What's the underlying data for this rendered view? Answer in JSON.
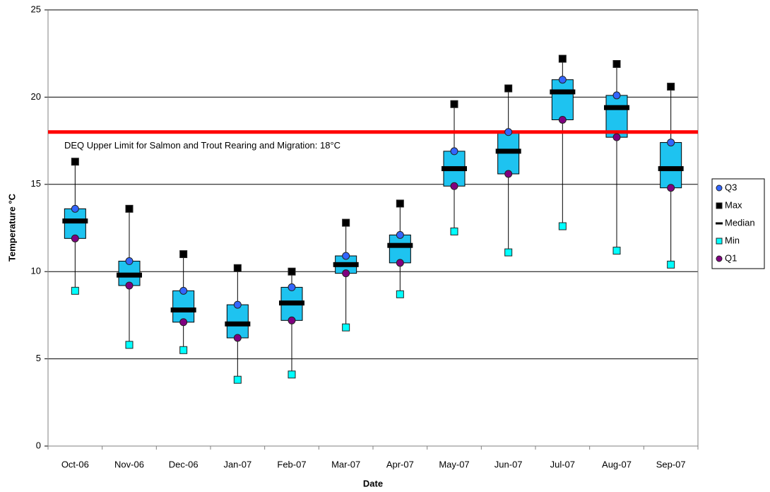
{
  "chart_data": {
    "type": "box",
    "x_label": "Date",
    "y_label": "Temperature °C",
    "categories": [
      "Oct-06",
      "Nov-06",
      "Dec-06",
      "Jan-07",
      "Feb-07",
      "Mar-07",
      "Apr-07",
      "May-07",
      "Jun-07",
      "Jul-07",
      "Aug-07",
      "Sep-07"
    ],
    "series": [
      {
        "name": "Q3",
        "color": "#3366ff",
        "marker": "circle",
        "role": "q3",
        "values": [
          13.6,
          10.6,
          8.9,
          8.1,
          9.1,
          10.9,
          12.1,
          16.9,
          18.0,
          21.0,
          20.1,
          17.4
        ]
      },
      {
        "name": "Max",
        "color": "#000000",
        "marker": "square",
        "role": "max",
        "values": [
          16.3,
          13.6,
          11.0,
          10.2,
          10.0,
          12.8,
          13.9,
          19.6,
          20.5,
          22.2,
          21.9,
          20.6
        ]
      },
      {
        "name": "Median",
        "color": "#000000",
        "marker": "dash",
        "role": "median",
        "values": [
          12.9,
          9.8,
          7.8,
          7.0,
          8.2,
          10.4,
          11.5,
          15.9,
          16.9,
          20.3,
          19.4,
          15.9
        ]
      },
      {
        "name": "Min",
        "color": "#00ffff",
        "marker": "square",
        "role": "min",
        "values": [
          8.9,
          5.8,
          5.5,
          3.8,
          4.1,
          6.8,
          8.7,
          12.3,
          11.1,
          12.6,
          11.2,
          10.4
        ]
      },
      {
        "name": "Q1",
        "color": "#800080",
        "marker": "circle",
        "role": "q1",
        "values": [
          11.9,
          9.2,
          7.1,
          6.2,
          7.2,
          9.9,
          10.5,
          14.9,
          15.6,
          18.7,
          17.7,
          14.8
        ]
      }
    ],
    "box_color": "#1ec3f0",
    "reference_line": {
      "value": 18,
      "label": "DEQ Upper Limit for Salmon and Trout Rearing and Migration: 18°C",
      "color": "#ff0000"
    },
    "ylim": [
      0,
      25
    ],
    "yticks": [
      0,
      5,
      10,
      15,
      20,
      25
    ],
    "grid": true,
    "legend": "right"
  }
}
